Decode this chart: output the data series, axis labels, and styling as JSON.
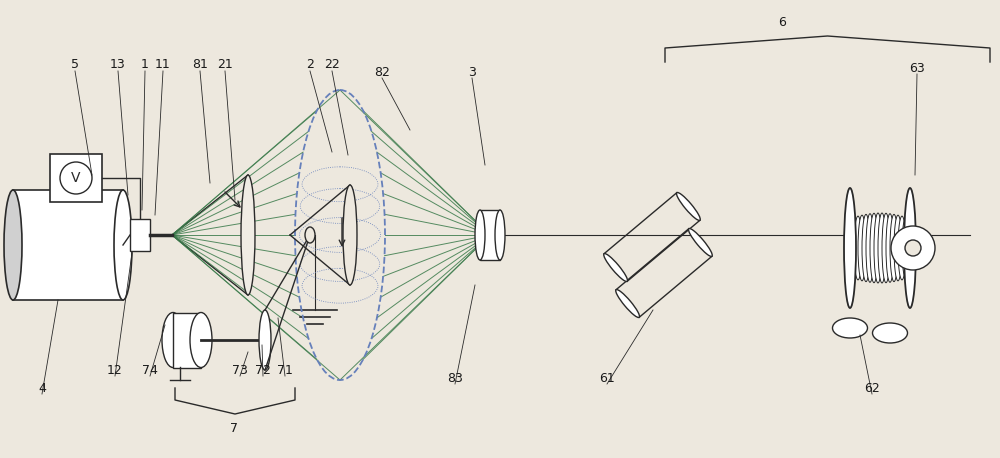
{
  "bg_color": "#ede8de",
  "line_color": "#2a2a2a",
  "dashed_color": "#6680bb",
  "green_line_color": "#3a7a4a",
  "label_color": "#1a1a1a",
  "fig_w": 10.0,
  "fig_h": 4.58,
  "dpi": 100
}
